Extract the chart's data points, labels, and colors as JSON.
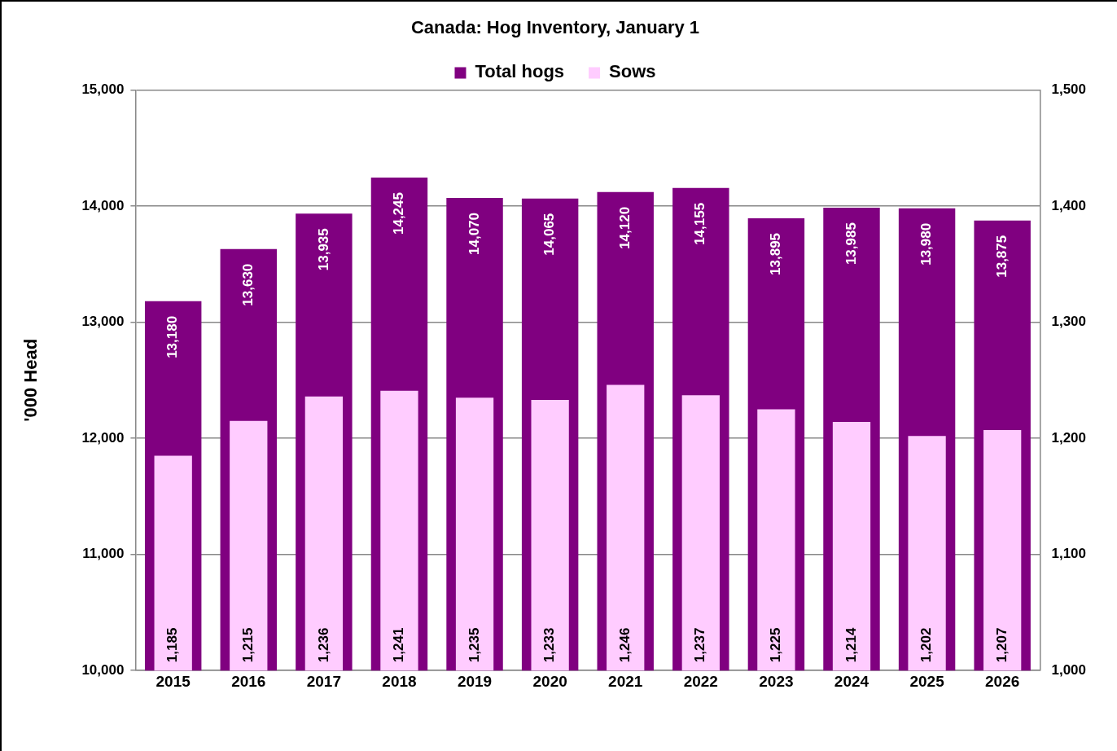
{
  "chart_data": {
    "type": "bar",
    "title": "Canada: Hog Inventory, January 1",
    "ylabel": "'000 Head",
    "categories": [
      "2015",
      "2016",
      "2017",
      "2018",
      "2019",
      "2020",
      "2021",
      "2022",
      "2023",
      "2024",
      "2025",
      "2026"
    ],
    "series": [
      {
        "name": "Total hogs",
        "color": "#800080",
        "values": [
          13180,
          13630,
          13935,
          14245,
          14070,
          14065,
          14120,
          14155,
          13895,
          13985,
          13980,
          13875
        ],
        "value_labels": [
          "13,180",
          "13,630",
          "13,935",
          "14,245",
          "14,070",
          "14,065",
          "14,120",
          "14,155",
          "13,895",
          "13,985",
          "13,980",
          "13,875"
        ]
      },
      {
        "name": "Sows",
        "color": "#ffccff",
        "axis": "y2",
        "values": [
          1185,
          1215,
          1236,
          1241,
          1235,
          1233,
          1246,
          1237,
          1225,
          1214,
          1202,
          1207
        ],
        "value_labels": [
          "1,185",
          "1,215",
          "1,236",
          "1,241",
          "1,235",
          "1,233",
          "1,246",
          "1,237",
          "1,225",
          "1,214",
          "1,202",
          "1,207"
        ]
      }
    ],
    "ylim": [
      10000,
      15000
    ],
    "yticks": [
      {
        "value": 10000,
        "label": "10,000"
      },
      {
        "value": 11000,
        "label": "11,000"
      },
      {
        "value": 12000,
        "label": "12,000"
      },
      {
        "value": 13000,
        "label": "13,000"
      },
      {
        "value": 14000,
        "label": "14,000"
      },
      {
        "value": 15000,
        "label": "15,000"
      }
    ],
    "y2lim": [
      1000,
      1500
    ],
    "y2ticks": [
      {
        "value": 1000,
        "label": "1,000"
      },
      {
        "value": 1100,
        "label": "1,100"
      },
      {
        "value": 1200,
        "label": "1,200"
      },
      {
        "value": 1300,
        "label": "1,300"
      },
      {
        "value": 1400,
        "label": "1,400"
      },
      {
        "value": 1500,
        "label": "1,500"
      }
    ],
    "grid": "y",
    "legend": "top"
  }
}
